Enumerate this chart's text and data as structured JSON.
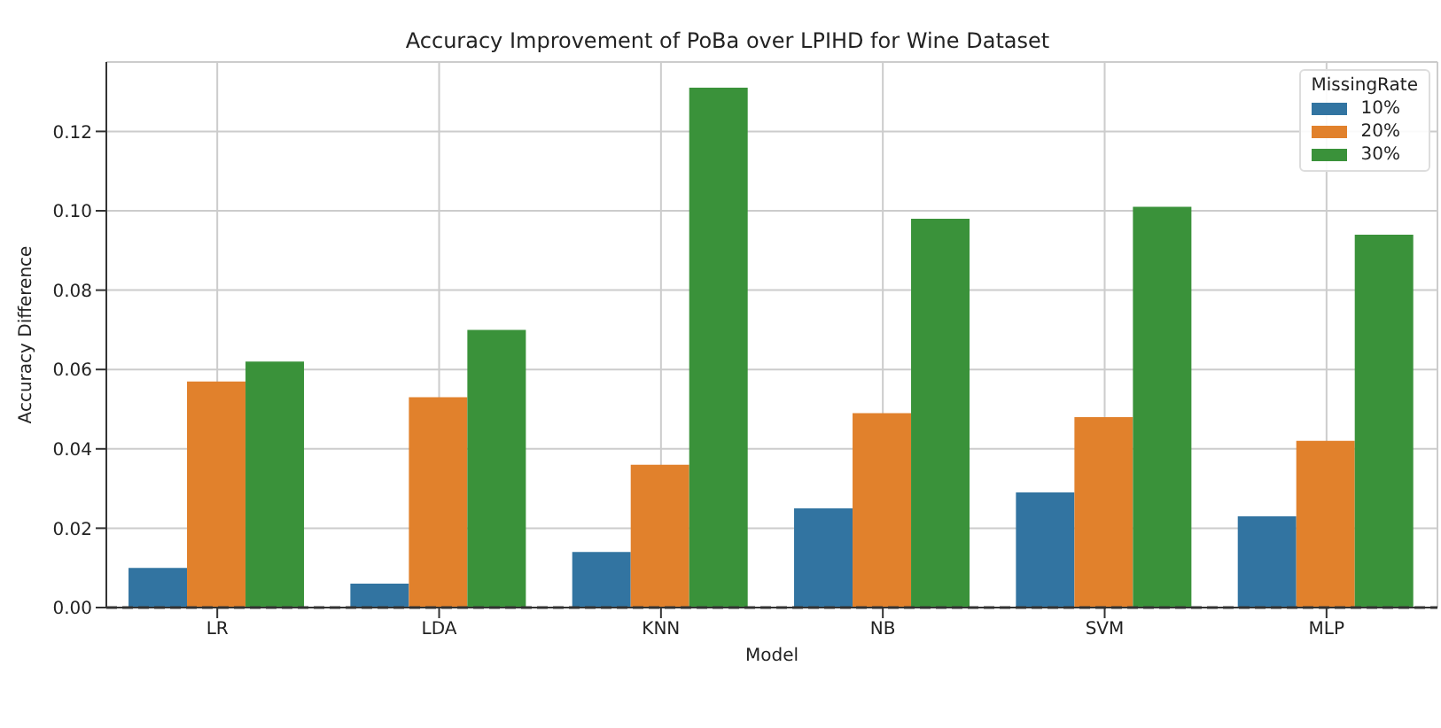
{
  "chart_data": {
    "type": "bar",
    "title": "Accuracy Improvement of PoBa over LPIHD for Wine Dataset",
    "xlabel": "Model",
    "ylabel": "Accuracy Difference",
    "legend_title": "MissingRate",
    "categories": [
      "LR",
      "LDA",
      "KNN",
      "NB",
      "SVM",
      "MLP"
    ],
    "series": [
      {
        "name": "10%",
        "color": "#3274a1",
        "values": [
          0.01,
          0.006,
          0.014,
          0.025,
          0.029,
          0.023
        ]
      },
      {
        "name": "20%",
        "color": "#e1812c",
        "values": [
          0.057,
          0.053,
          0.036,
          0.049,
          0.048,
          0.042
        ]
      },
      {
        "name": "30%",
        "color": "#3a923a",
        "values": [
          0.062,
          0.07,
          0.131,
          0.098,
          0.101,
          0.094
        ]
      }
    ],
    "ylim": [
      0,
      0.1375
    ],
    "yticks": [
      {
        "value": 0,
        "label": "0.00"
      },
      {
        "value": 0.02,
        "label": "0.02"
      },
      {
        "value": 0.04,
        "label": "0.04"
      },
      {
        "value": 0.06,
        "label": "0.06"
      },
      {
        "value": 0.08,
        "label": "0.08"
      },
      {
        "value": 0.1,
        "label": "0.10"
      },
      {
        "value": 0.12,
        "label": "0.12"
      }
    ],
    "ref_lines": [
      {
        "axis": "y",
        "value": 0,
        "color": "#333333",
        "line_style": "dashed"
      }
    ],
    "grid": true,
    "legend": "top right"
  }
}
